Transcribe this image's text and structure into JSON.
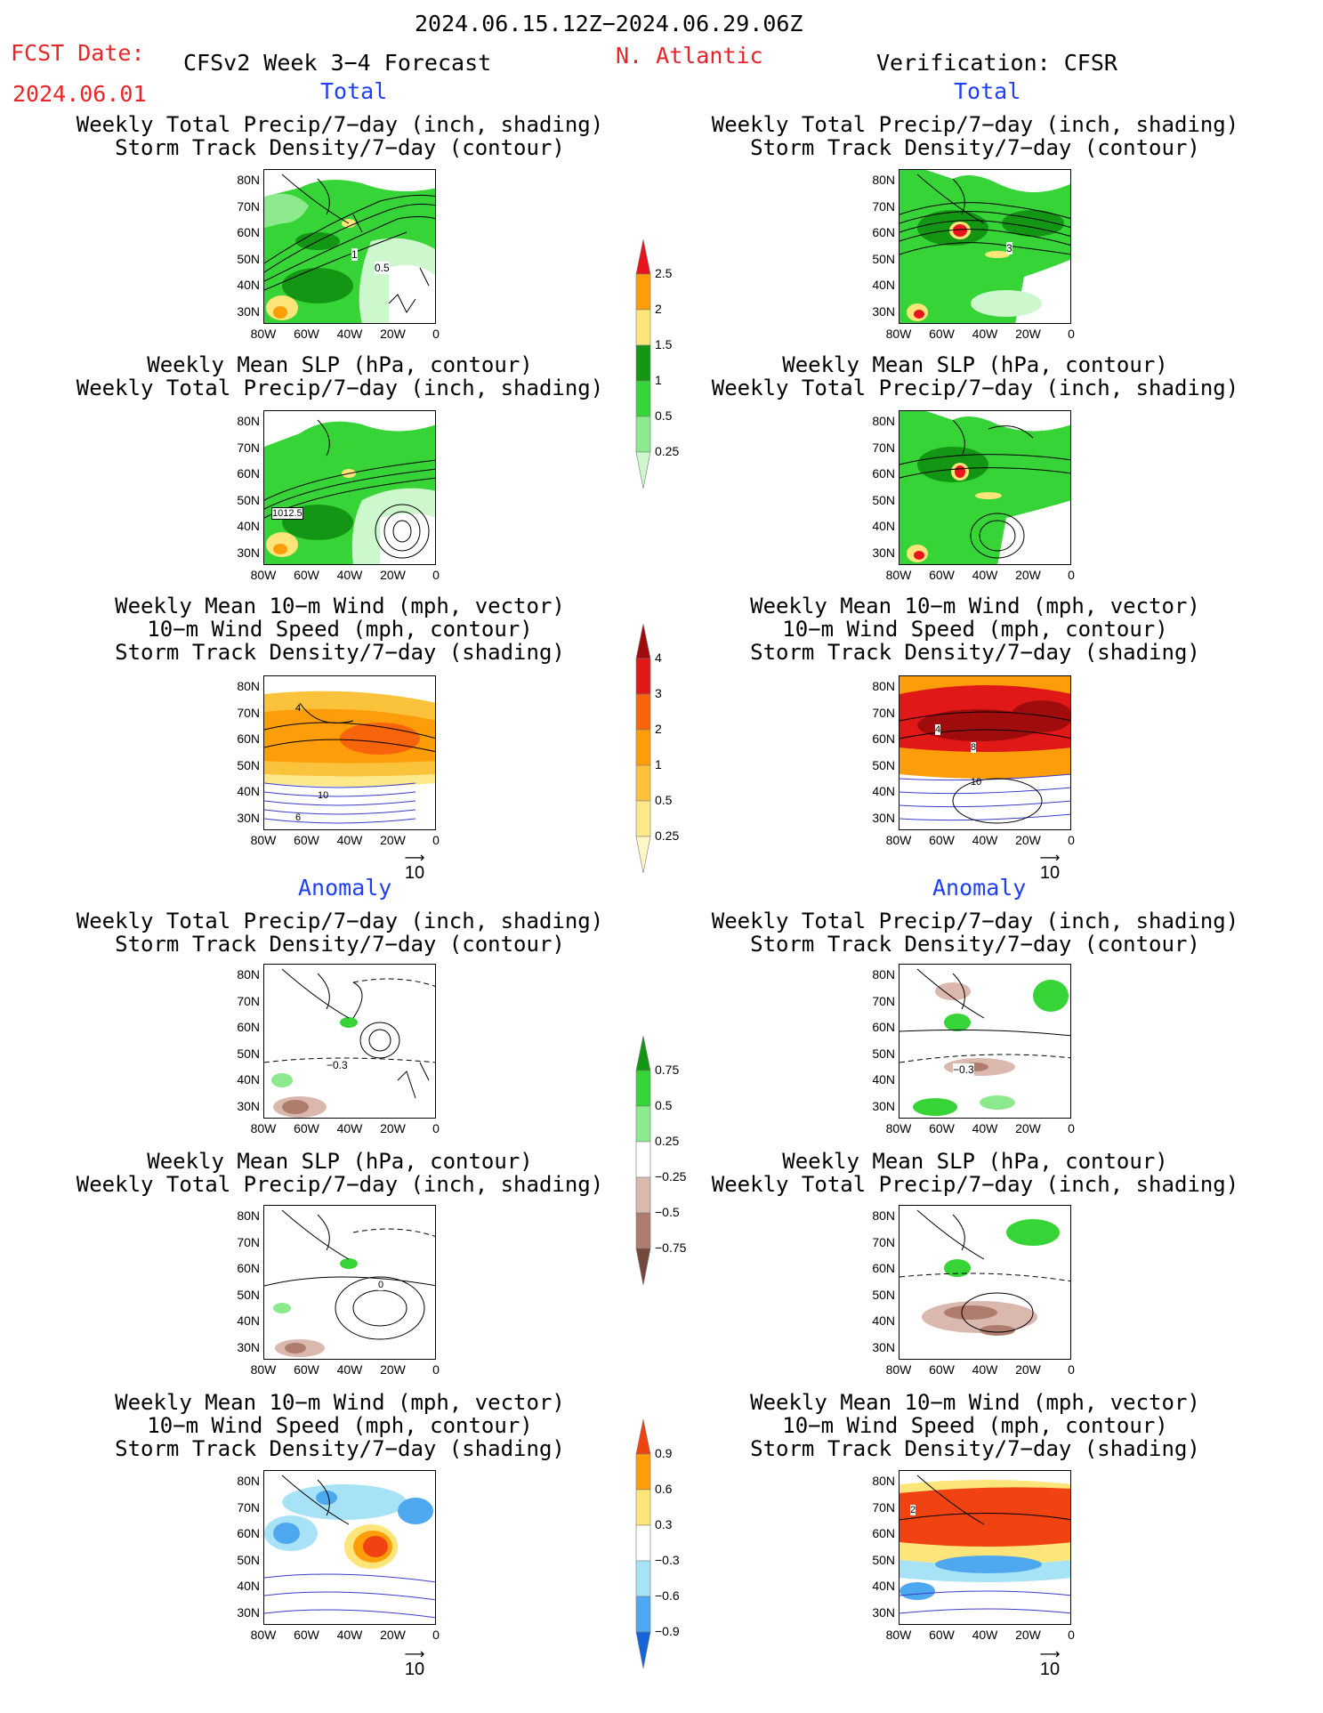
{
  "header": {
    "period": "2024.06.15.12Z−2024.06.29.06Z",
    "fcst_label": "FCST Date:",
    "fcst_date": "2024.06.01",
    "product": "CFSv2 Week 3−4 Forecast",
    "region": "N. Atlantic",
    "verification": "Verification: CFSR"
  },
  "section_labels": {
    "total": "Total",
    "anomaly": "Anomaly"
  },
  "panel_titles": {
    "precip_storm": [
      "Weekly Total Precip/7−day (inch, shading)",
      "Storm Track Density/7−day (contour)"
    ],
    "slp_precip": [
      "Weekly Mean SLP (hPa, contour)",
      "Weekly Total Precip/7−day (inch, shading)"
    ],
    "wind_storm": [
      "Weekly Mean 10−m Wind (mph, vector)",
      "10−m Wind Speed (mph, contour)",
      "Storm Track Density/7−day (shading)"
    ]
  },
  "axes": {
    "lat_labels": [
      "80N",
      "70N",
      "60N",
      "50N",
      "40N",
      "30N"
    ],
    "lon_labels": [
      "80W",
      "60W",
      "40W",
      "20W",
      "0"
    ],
    "vector_ref": "10"
  },
  "contour_labels": {
    "fcst_precip_1": "1",
    "fcst_precip_2": "0.5",
    "obs_precip_1": "3",
    "fcst_slp": "1012.5",
    "fcst_wind_1": "4",
    "fcst_wind_2": "10",
    "fcst_wind_3": "6",
    "obs_wind_1": "4",
    "obs_wind_2": "8",
    "obs_wind_3": "10",
    "anom_precip_fcst": "−0.3",
    "anom_precip_obs": "−0.3",
    "anom_slp": "0",
    "anom_wind_obs": "2"
  },
  "colorbars": {
    "precip": {
      "labels": [
        "2.5",
        "2",
        "1.5",
        "1",
        "0.5",
        "0.25"
      ],
      "colors": [
        "#e8161c",
        "#fd9d09",
        "#fde57a",
        "#139613",
        "#37d437",
        "#8de98d",
        "#cdf7cd"
      ]
    },
    "storm": {
      "labels": [
        "4",
        "3",
        "2",
        "1",
        "0.5",
        "0.25"
      ],
      "colors": [
        "#a00c0c",
        "#e01818",
        "#f7640c",
        "#fd9d09",
        "#fbc23c",
        "#fde88a",
        "#fff6c5"
      ]
    },
    "precip_anom": {
      "labels": [
        "0.75",
        "0.5",
        "0.25",
        "−0.25",
        "−0.5",
        "−0.75"
      ],
      "colors": [
        "#139613",
        "#37d437",
        "#8de98d",
        "#ffffff",
        "#dab8ae",
        "#ad7c6c",
        "#74483c"
      ]
    },
    "storm_anom": {
      "labels": [
        "0.9",
        "0.6",
        "0.3",
        "−0.3",
        "−0.6",
        "−0.9"
      ],
      "colors": [
        "#f14312",
        "#fd9d09",
        "#fde57a",
        "#ffffff",
        "#a8e2f6",
        "#4ea8f0",
        "#1565d8"
      ]
    }
  }
}
